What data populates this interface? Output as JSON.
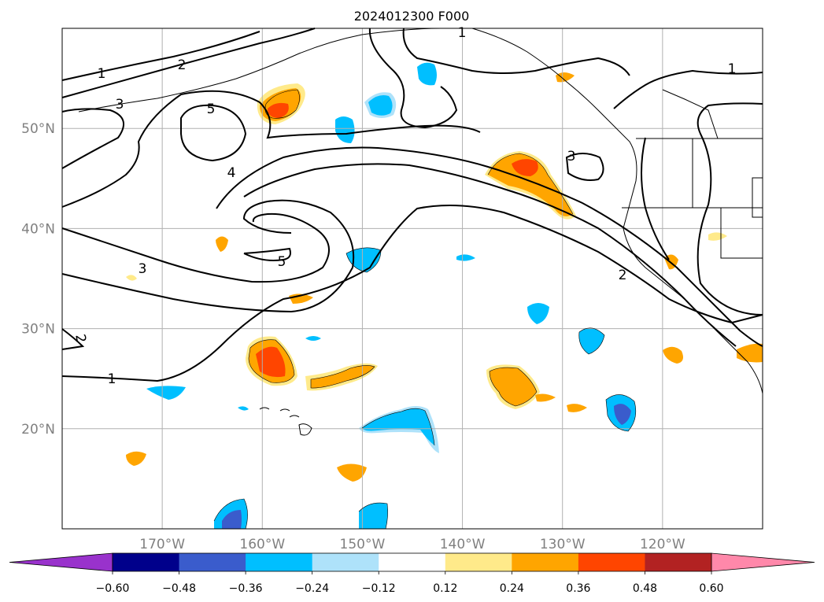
{
  "title": "2024012300 F000",
  "map": {
    "lon_range": [
      -180,
      -110
    ],
    "lat_range": [
      10,
      60
    ],
    "meridians": [
      -170,
      -160,
      -150,
      -140,
      -130,
      -120
    ],
    "parallels": [
      20,
      30,
      40,
      50
    ],
    "lon_labels": [
      "170°W",
      "160°W",
      "150°W",
      "140°W",
      "130°W",
      "120°W"
    ],
    "lat_labels": [
      "20°N",
      "30°N",
      "40°N",
      "50°N"
    ],
    "grid": true,
    "contour_color": "#000000",
    "tick_label_color": "#808080"
  },
  "contour_labels": [
    "1",
    "2",
    "3",
    "5",
    "4",
    "3",
    "5",
    "1",
    "2",
    "3",
    "2",
    "1",
    "1"
  ],
  "colorbar": {
    "orientation": "horizontal",
    "extend": "both",
    "levels": [
      -0.6,
      -0.48,
      -0.36,
      -0.24,
      -0.12,
      0.12,
      0.24,
      0.36,
      0.48,
      0.6
    ],
    "tick_labels": [
      "−0.60",
      "−0.48",
      "−0.36",
      "−0.24",
      "−0.12",
      "0.12",
      "0.24",
      "0.36",
      "0.48",
      "0.60"
    ],
    "under_color": "#9932cc",
    "over_color": "#ff88aa",
    "colors": [
      "#00008b",
      "#3a5ccc",
      "#00bfff",
      "#aee2fa",
      "#ffffff",
      "#ffea8a",
      "#ffa500",
      "#ff4500",
      "#b22222"
    ]
  }
}
